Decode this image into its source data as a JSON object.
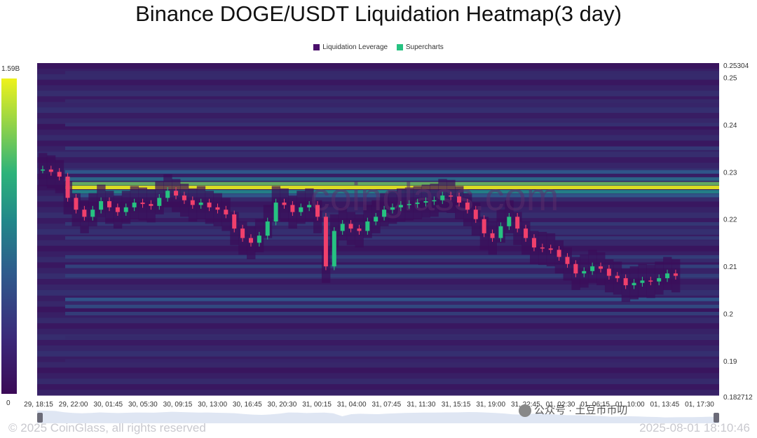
{
  "chart_data": {
    "type": "heatmap",
    "title": "Binance DOGE/USDT Liquidation Heatmap(3 day)",
    "legend": [
      {
        "label": "Liquidation Leverage",
        "color": "#4a0f6b"
      },
      {
        "label": "Supercharts",
        "color": "#26c281"
      }
    ],
    "colorbar": {
      "max_label": "1.59B",
      "min_label": "0",
      "colors": [
        "#3b0a57",
        "#2f5a8c",
        "#22888a",
        "#8fd24a",
        "#eef21c"
      ]
    },
    "y_axis": {
      "ylim": [
        0.182712,
        0.25304
      ],
      "ticks": [
        "0.25304",
        "0.25",
        "0.24",
        "0.23",
        "0.22",
        "0.21",
        "0.2",
        "0.19",
        "0.182712"
      ],
      "tick_values": [
        0.25304,
        0.25,
        0.24,
        0.23,
        0.22,
        0.21,
        0.2,
        0.19,
        0.182712
      ]
    },
    "x_axis": {
      "ticks": [
        "29, 18:15",
        "29, 22:00",
        "30, 01:45",
        "30, 05:30",
        "30, 09:15",
        "30, 13:00",
        "30, 16:45",
        "30, 20:30",
        "31, 00:15",
        "31, 04:00",
        "31, 07:45",
        "31, 11:30",
        "31, 15:15",
        "31, 19:00",
        "31, 22:45",
        "01, 02:30",
        "01, 06:15",
        "01, 10:00",
        "01, 13:45",
        "01, 17:30"
      ]
    },
    "liquidation_levels": [
      {
        "price": 0.2267,
        "intensity": 1.0
      },
      {
        "price": 0.2275,
        "intensity": 0.7
      },
      {
        "price": 0.2258,
        "intensity": 0.55
      },
      {
        "price": 0.2285,
        "intensity": 0.4
      },
      {
        "price": 0.23,
        "intensity": 0.3
      },
      {
        "price": 0.225,
        "intensity": 0.3
      },
      {
        "price": 0.203,
        "intensity": 0.3
      },
      {
        "price": 0.2015,
        "intensity": 0.25
      },
      {
        "price": 0.21,
        "intensity": 0.22
      },
      {
        "price": 0.212,
        "intensity": 0.2
      },
      {
        "price": 0.208,
        "intensity": 0.2
      },
      {
        "price": 0.216,
        "intensity": 0.18
      },
      {
        "price": 0.219,
        "intensity": 0.18
      },
      {
        "price": 0.2,
        "intensity": 0.2
      },
      {
        "price": 0.235,
        "intensity": 0.18
      },
      {
        "price": 0.24,
        "intensity": 0.15
      },
      {
        "price": 0.245,
        "intensity": 0.12
      },
      {
        "price": 0.251,
        "intensity": 0.12
      },
      {
        "price": 0.195,
        "intensity": 0.12
      },
      {
        "price": 0.19,
        "intensity": 0.1
      }
    ],
    "price_path": [
      0.2305,
      0.23,
      0.229,
      0.2245,
      0.222,
      0.2205,
      0.222,
      0.2238,
      0.2225,
      0.2215,
      0.2225,
      0.2235,
      0.2232,
      0.2228,
      0.2245,
      0.226,
      0.225,
      0.224,
      0.223,
      0.2235,
      0.2225,
      0.222,
      0.221,
      0.218,
      0.216,
      0.215,
      0.2165,
      0.2195,
      0.2235,
      0.223,
      0.2215,
      0.2225,
      0.223,
      0.2205,
      0.21,
      0.2175,
      0.219,
      0.218,
      0.2175,
      0.2195,
      0.2205,
      0.222,
      0.2225,
      0.223,
      0.2232,
      0.2235,
      0.2238,
      0.224,
      0.225,
      0.2248,
      0.2235,
      0.222,
      0.22,
      0.217,
      0.216,
      0.2185,
      0.2205,
      0.218,
      0.216,
      0.214,
      0.2138,
      0.2135,
      0.212,
      0.2105,
      0.2085,
      0.209,
      0.21,
      0.2095,
      0.208,
      0.2075,
      0.206,
      0.2065,
      0.207,
      0.2068,
      0.2075,
      0.2085,
      0.208
    ]
  },
  "watermark": "coinglass.com",
  "footer": {
    "copyright": "© 2025 CoinGlass, all rights reserved",
    "timestamp": "2025-08-01 18:10:46",
    "wechat": "公众号 · 土豆币币叨"
  }
}
